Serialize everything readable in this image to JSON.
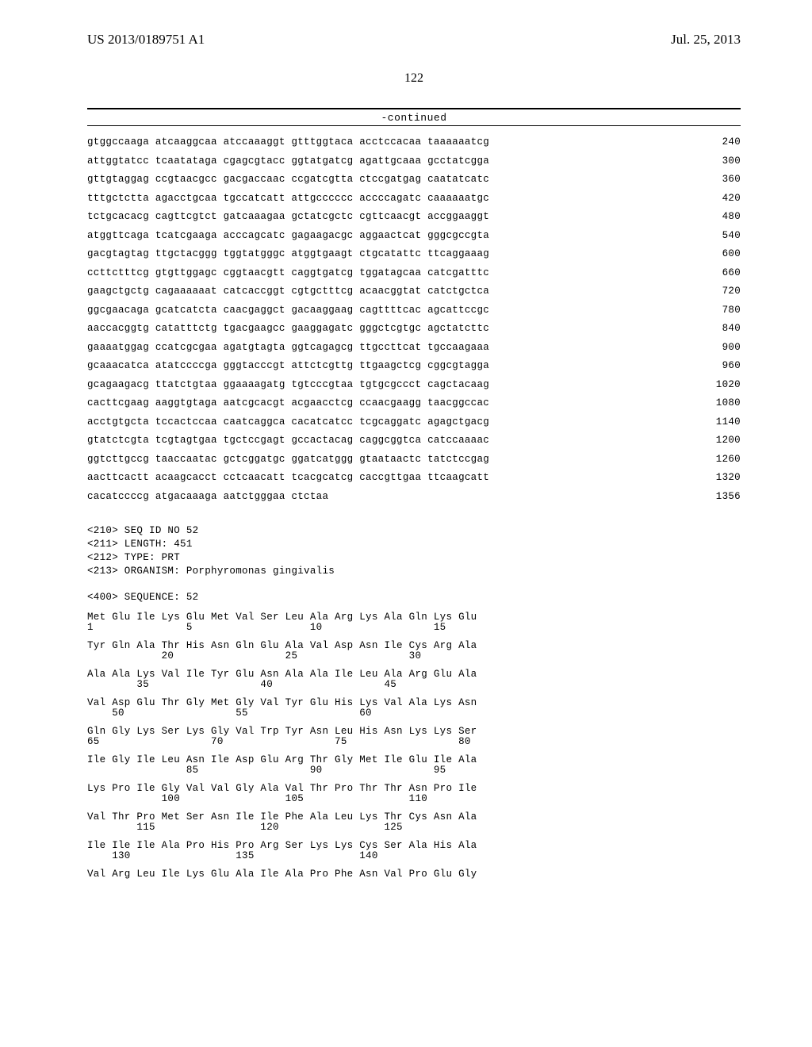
{
  "header": {
    "publication_number": "US 2013/0189751 A1",
    "publication_date": "Jul. 25, 2013"
  },
  "page_number": "122",
  "continued_label": "-continued",
  "dna_sequence": {
    "rows": [
      {
        "seq": "gtggccaaga atcaaggcaa atccaaaggt gtttggtaca acctccacaa taaaaaatcg",
        "num": "240"
      },
      {
        "seq": "attggtatcc tcaatataga cgagcgtacc ggtatgatcg agattgcaaa gcctatcgga",
        "num": "300"
      },
      {
        "seq": "gttgtaggag ccgtaacgcc gacgaccaac ccgatcgtta ctccgatgag caatatcatc",
        "num": "360"
      },
      {
        "seq": "tttgctctta agacctgcaa tgccatcatt attgcccccc accccagatc caaaaaatgc",
        "num": "420"
      },
      {
        "seq": "tctgcacacg cagttcgtct gatcaaagaa gctatcgctc cgttcaacgt accggaaggt",
        "num": "480"
      },
      {
        "seq": "atggttcaga tcatcgaaga acccagcatc gagaagacgc aggaactcat gggcgccgta",
        "num": "540"
      },
      {
        "seq": "gacgtagtag ttgctacggg tggtatgggc atggtgaagt ctgcatattc ttcaggaaag",
        "num": "600"
      },
      {
        "seq": "ccttctttcg gtgttggagc cggtaacgtt caggtgatcg tggatagcaa catcgatttc",
        "num": "660"
      },
      {
        "seq": "gaagctgctg cagaaaaaat catcaccggt cgtgctttcg acaacggtat catctgctca",
        "num": "720"
      },
      {
        "seq": "ggcgaacaga gcatcatcta caacgaggct gacaaggaag cagttttcac agcattccgc",
        "num": "780"
      },
      {
        "seq": "aaccacggtg catatttctg tgacgaagcc gaaggagatc gggctcgtgc agctatcttc",
        "num": "840"
      },
      {
        "seq": "gaaaatggag ccatcgcgaa agatgtagta ggtcagagcg ttgccttcat tgccaagaaa",
        "num": "900"
      },
      {
        "seq": "gcaaacatca atatccccga gggtacccgt attctcgttg ttgaagctcg cggcgtagga",
        "num": "960"
      },
      {
        "seq": "gcagaagacg ttatctgtaa ggaaaagatg tgtcccgtaa tgtgcgccct cagctacaag",
        "num": "1020"
      },
      {
        "seq": "cacttcgaag aaggtgtaga aatcgcacgt acgaacctcg ccaacgaagg taacggccac",
        "num": "1080"
      },
      {
        "seq": "acctgtgcta tccactccaa caatcaggca cacatcatcc tcgcaggatc agagctgacg",
        "num": "1140"
      },
      {
        "seq": "gtatctcgta tcgtagtgaa tgctccgagt gccactacag caggcggtca catccaaaac",
        "num": "1200"
      },
      {
        "seq": "ggtcttgccg taaccaatac gctcggatgc ggatcatggg gtaataactc tatctccgag",
        "num": "1260"
      },
      {
        "seq": "aacttcactt acaagcacct cctcaacatt tcacgcatcg caccgttgaa ttcaagcatt",
        "num": "1320"
      },
      {
        "seq": "cacatccccg atgacaaaga aatctgggaa ctctaa",
        "num": "1356"
      }
    ]
  },
  "seq_header": {
    "l1": "<210> SEQ ID NO 52",
    "l2": "<211> LENGTH: 451",
    "l3": "<212> TYPE: PRT",
    "l4": "<213> ORGANISM: Porphyromonas gingivalis",
    "l5": "<400> SEQUENCE: 52"
  },
  "protein_sequence": {
    "blocks": [
      {
        "aa": "Met Glu Ile Lys Glu Met Val Ser Leu Ala Arg Lys Ala Gln Lys Glu",
        "nm": "1               5                   10                  15"
      },
      {
        "aa": "Tyr Gln Ala Thr His Asn Gln Glu Ala Val Asp Asn Ile Cys Arg Ala",
        "nm": "            20                  25                  30"
      },
      {
        "aa": "Ala Ala Lys Val Ile Tyr Glu Asn Ala Ala Ile Leu Ala Arg Glu Ala",
        "nm": "        35                  40                  45"
      },
      {
        "aa": "Val Asp Glu Thr Gly Met Gly Val Tyr Glu His Lys Val Ala Lys Asn",
        "nm": "    50                  55                  60"
      },
      {
        "aa": "Gln Gly Lys Ser Lys Gly Val Trp Tyr Asn Leu His Asn Lys Lys Ser",
        "nm": "65                  70                  75                  80"
      },
      {
        "aa": "Ile Gly Ile Leu Asn Ile Asp Glu Arg Thr Gly Met Ile Glu Ile Ala",
        "nm": "                85                  90                  95"
      },
      {
        "aa": "Lys Pro Ile Gly Val Val Gly Ala Val Thr Pro Thr Thr Asn Pro Ile",
        "nm": "            100                 105                 110"
      },
      {
        "aa": "Val Thr Pro Met Ser Asn Ile Ile Phe Ala Leu Lys Thr Cys Asn Ala",
        "nm": "        115                 120                 125"
      },
      {
        "aa": "Ile Ile Ile Ala Pro His Pro Arg Ser Lys Lys Cys Ser Ala His Ala",
        "nm": "    130                 135                 140"
      },
      {
        "aa": "Val Arg Leu Ile Lys Glu Ala Ile Ala Pro Phe Asn Val Pro Glu Gly",
        "nm": ""
      }
    ]
  }
}
